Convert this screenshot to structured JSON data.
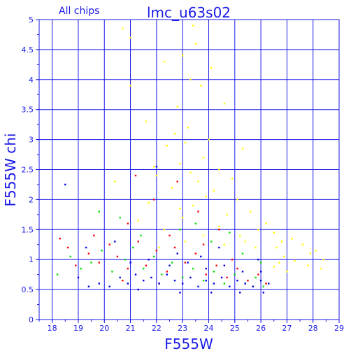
{
  "chart_data": {
    "type": "scatter",
    "title": "lmc_u63s02",
    "subtitle": "All chips",
    "xlabel": "F555W",
    "ylabel": "F555W chi",
    "xlim": [
      17.5,
      29
    ],
    "ylim": [
      0,
      5
    ],
    "grid": true,
    "x_ticks": [
      "18",
      "19",
      "20",
      "21",
      "22",
      "23",
      "24",
      "25",
      "26",
      "27",
      "28",
      "29"
    ],
    "y_ticks": [
      "0",
      "0.5",
      "1",
      "1.5",
      "2",
      "2.5",
      "3",
      "3.5",
      "4",
      "4.5",
      "5"
    ],
    "colors": {
      "axis": "#1a1ae6",
      "grid": "#1a1ae6"
    },
    "series": [
      {
        "color": "#ffff00",
        "points": [
          [
            20.7,
            4.85
          ],
          [
            21.0,
            4.7
          ],
          [
            22.3,
            4.3
          ],
          [
            23.4,
            4.9
          ],
          [
            23.5,
            4.6
          ],
          [
            23.0,
            4.4
          ],
          [
            24.1,
            4.2
          ],
          [
            23.3,
            4.0
          ],
          [
            23.7,
            3.9
          ],
          [
            21.0,
            3.9
          ],
          [
            24.6,
            3.6
          ],
          [
            22.8,
            3.55
          ],
          [
            21.6,
            3.3
          ],
          [
            23.2,
            3.2
          ],
          [
            22.7,
            3.1
          ],
          [
            24.0,
            3.0
          ],
          [
            23.1,
            2.95
          ],
          [
            22.4,
            2.9
          ],
          [
            25.3,
            2.85
          ],
          [
            23.8,
            2.7
          ],
          [
            22.9,
            2.6
          ],
          [
            21.9,
            2.55
          ],
          [
            24.4,
            2.5
          ],
          [
            23.3,
            2.45
          ],
          [
            22.0,
            2.4
          ],
          [
            24.9,
            2.35
          ],
          [
            23.6,
            2.3
          ],
          [
            20.4,
            2.3
          ],
          [
            22.6,
            2.2
          ],
          [
            24.2,
            2.15
          ],
          [
            23.9,
            2.05
          ],
          [
            25.1,
            2.0
          ],
          [
            21.7,
            1.95
          ],
          [
            23.4,
            1.9
          ],
          [
            22.9,
            1.85
          ],
          [
            25.6,
            1.8
          ],
          [
            24.7,
            1.75
          ],
          [
            23.0,
            1.7
          ],
          [
            21.3,
            1.65
          ],
          [
            26.2,
            1.6
          ],
          [
            24.4,
            1.55
          ],
          [
            25.9,
            1.5
          ],
          [
            22.3,
            1.5
          ],
          [
            26.5,
            1.45
          ],
          [
            23.8,
            1.4
          ],
          [
            27.2,
            1.35
          ],
          [
            26.8,
            1.3
          ],
          [
            25.4,
            1.3
          ],
          [
            27.6,
            1.25
          ],
          [
            26.6,
            1.2
          ],
          [
            28.1,
            1.15
          ],
          [
            27.9,
            1.1
          ],
          [
            26.9,
            1.05
          ],
          [
            28.4,
            1.0
          ],
          [
            27.3,
            0.98
          ],
          [
            26.7,
            0.95
          ],
          [
            27.8,
            0.9
          ],
          [
            26.5,
            0.88
          ],
          [
            28.3,
            0.85
          ],
          [
            27.0,
            0.8
          ],
          [
            25.8,
            1.2
          ],
          [
            25.2,
            1.4
          ],
          [
            24.6,
            1.25
          ],
          [
            23.1,
            1.3
          ],
          [
            22.1,
            1.2
          ]
        ]
      },
      {
        "color": "#ff0000",
        "points": [
          [
            18.3,
            1.35
          ],
          [
            18.6,
            1.2
          ],
          [
            18.9,
            0.9
          ],
          [
            19.4,
            1.1
          ],
          [
            19.8,
            0.95
          ],
          [
            20.2,
            1.25
          ],
          [
            20.5,
            1.05
          ],
          [
            20.9,
            0.85
          ],
          [
            21.3,
            1.3
          ],
          [
            21.6,
            0.9
          ],
          [
            22.0,
            1.15
          ],
          [
            22.4,
            0.8
          ],
          [
            22.7,
            1.2
          ],
          [
            23.1,
            0.95
          ],
          [
            23.5,
            1.1
          ],
          [
            23.9,
            0.75
          ],
          [
            24.3,
            0.9
          ],
          [
            24.7,
            0.7
          ],
          [
            25.1,
            0.85
          ],
          [
            25.5,
            0.65
          ],
          [
            25.9,
            0.75
          ],
          [
            26.2,
            0.6
          ],
          [
            24.9,
            1.0
          ],
          [
            23.8,
            1.25
          ],
          [
            22.5,
            1.4
          ],
          [
            21.9,
            2.0
          ],
          [
            22.8,
            2.3
          ],
          [
            23.6,
            1.8
          ],
          [
            24.4,
            1.5
          ],
          [
            20.9,
            1.6
          ],
          [
            21.2,
            2.4
          ],
          [
            19.6,
            1.4
          ],
          [
            20.7,
            0.65
          ],
          [
            22.1,
            0.6
          ],
          [
            25.7,
            0.55
          ]
        ]
      },
      {
        "color": "#00e000",
        "points": [
          [
            18.2,
            0.75
          ],
          [
            18.7,
            1.05
          ],
          [
            19.1,
            0.85
          ],
          [
            19.5,
            0.95
          ],
          [
            19.9,
            1.15
          ],
          [
            20.3,
            0.8
          ],
          [
            20.8,
            1.0
          ],
          [
            21.1,
            1.2
          ],
          [
            21.5,
            0.85
          ],
          [
            21.9,
            1.05
          ],
          [
            22.2,
            0.75
          ],
          [
            22.6,
            0.95
          ],
          [
            23.0,
            0.7
          ],
          [
            23.4,
            0.85
          ],
          [
            23.8,
            0.65
          ],
          [
            24.2,
            0.8
          ],
          [
            24.6,
            0.6
          ],
          [
            25.0,
            0.75
          ],
          [
            25.4,
            0.6
          ],
          [
            25.8,
            0.7
          ],
          [
            26.1,
            0.55
          ],
          [
            24.1,
            1.3
          ],
          [
            24.8,
            1.45
          ],
          [
            23.5,
            1.6
          ],
          [
            22.9,
            1.5
          ],
          [
            21.4,
            1.4
          ],
          [
            20.6,
            1.7
          ],
          [
            25.3,
            1.1
          ],
          [
            26.0,
            0.95
          ],
          [
            19.8,
            1.8
          ]
        ]
      },
      {
        "color": "#0000e6",
        "points": [
          [
            18.5,
            2.25
          ],
          [
            19.0,
            0.7
          ],
          [
            19.4,
            0.55
          ],
          [
            19.8,
            0.6
          ],
          [
            20.2,
            0.55
          ],
          [
            20.6,
            0.7
          ],
          [
            20.9,
            0.6
          ],
          [
            21.2,
            0.75
          ],
          [
            21.5,
            0.65
          ],
          [
            21.8,
            0.7
          ],
          [
            22.1,
            0.6
          ],
          [
            22.4,
            0.75
          ],
          [
            22.7,
            0.65
          ],
          [
            23.0,
            0.6
          ],
          [
            23.3,
            0.7
          ],
          [
            23.6,
            0.55
          ],
          [
            23.9,
            0.65
          ],
          [
            24.2,
            0.6
          ],
          [
            24.5,
            0.7
          ],
          [
            24.8,
            0.55
          ],
          [
            25.1,
            0.65
          ],
          [
            25.4,
            0.6
          ],
          [
            25.7,
            0.55
          ],
          [
            26.0,
            0.65
          ],
          [
            26.3,
            0.6
          ],
          [
            21.0,
            0.95
          ],
          [
            21.7,
            1.0
          ],
          [
            22.5,
            0.9
          ],
          [
            23.2,
            0.95
          ],
          [
            23.9,
            0.85
          ],
          [
            24.6,
            0.9
          ],
          [
            25.3,
            0.8
          ],
          [
            26.0,
            0.8
          ],
          [
            22.0,
            2.55
          ],
          [
            20.4,
            1.3
          ],
          [
            19.3,
            1.2
          ],
          [
            24.4,
            1.2
          ],
          [
            23.7,
            1.05
          ],
          [
            22.8,
            1.1
          ],
          [
            25.9,
            1.0
          ],
          [
            21.3,
            0.5
          ],
          [
            22.9,
            0.45
          ],
          [
            24.1,
            0.45
          ],
          [
            25.2,
            0.45
          ],
          [
            26.1,
            0.45
          ]
        ]
      }
    ]
  }
}
